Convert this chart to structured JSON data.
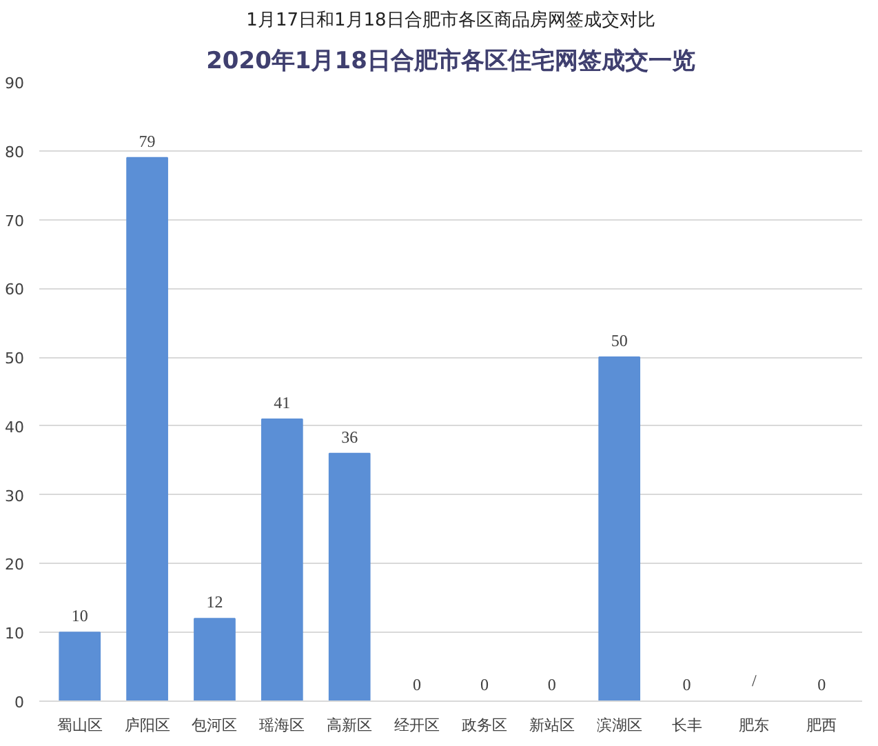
{
  "chart_data": {
    "type": "bar",
    "title": "1月17日和1月18日合肥市各区商品房网签成交对比",
    "subtitle": "2020年1月18日合肥市各区住宅网签成交一览",
    "categories": [
      "蜀山区",
      "庐阳区",
      "包河区",
      "瑶海区",
      "高新区",
      "经开区",
      "政务区",
      "新站区",
      "滨湖区",
      "长丰",
      "肥东",
      "肥西"
    ],
    "values": [
      10,
      79,
      12,
      41,
      36,
      0,
      0,
      0,
      50,
      0,
      null,
      0
    ],
    "value_labels": [
      "10",
      "79",
      "12",
      "41",
      "36",
      "0",
      "0",
      "0",
      "50",
      "0",
      "/",
      "0"
    ],
    "color": "#5b8fd6",
    "ylim": [
      0,
      90
    ],
    "yticks": [
      0,
      10,
      20,
      30,
      40,
      50,
      60,
      70,
      80,
      90
    ],
    "grid": "y"
  }
}
